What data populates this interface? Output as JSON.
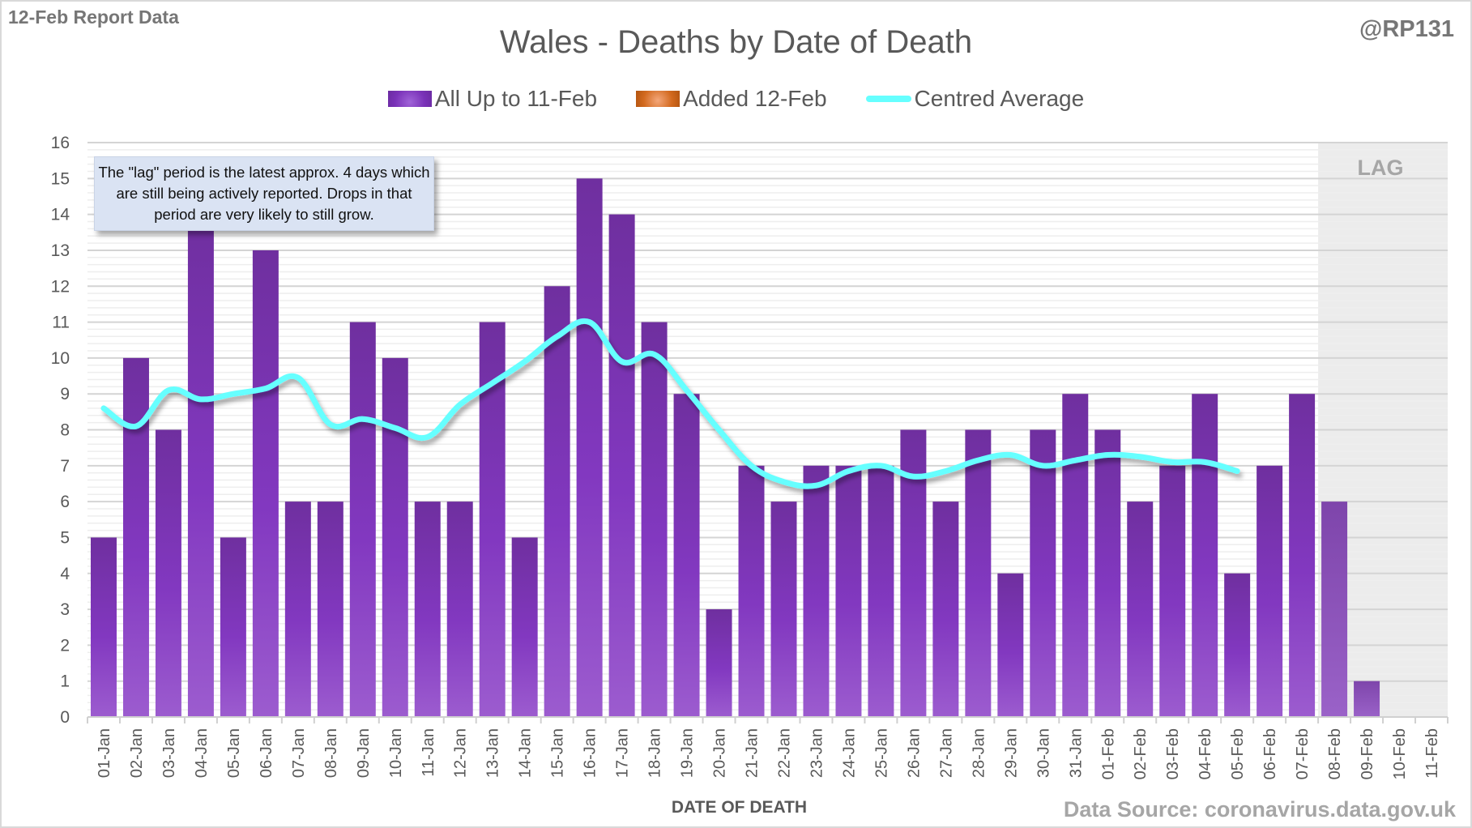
{
  "header": {
    "report_label": "12-Feb Report Data",
    "author": "@RP131"
  },
  "annotations": {
    "callout": "The \"lag\" period is the latest approx. 4 days which are still being actively reported.  Drops in that period are very likely to still grow.",
    "lag_label": "LAG",
    "source": "Data Source: coronavirus.data.gov.uk"
  },
  "colors": {
    "bar": "#7b33b8",
    "bar_lag": "#8a4fb8",
    "added": "#d2691e",
    "average": "#66ffff",
    "lag_shade": "#ececec"
  },
  "chart_data": {
    "type": "bar",
    "title": "Wales - Deaths by Date of Death",
    "xlabel": "DATE OF DEATH",
    "ylabel": "",
    "ylim": [
      0,
      16
    ],
    "yticks": [
      "0",
      "1",
      "2",
      "3",
      "4",
      "5",
      "6",
      "7",
      "8",
      "9",
      "10",
      "11",
      "12",
      "13",
      "14",
      "15",
      "16"
    ],
    "grid": true,
    "legend_position": "top-center",
    "lag_period": [
      "08-Feb",
      "11-Feb"
    ],
    "categories": [
      "01-Jan",
      "02-Jan",
      "03-Jan",
      "04-Jan",
      "05-Jan",
      "06-Jan",
      "07-Jan",
      "08-Jan",
      "09-Jan",
      "10-Jan",
      "11-Jan",
      "12-Jan",
      "13-Jan",
      "14-Jan",
      "15-Jan",
      "16-Jan",
      "17-Jan",
      "18-Jan",
      "19-Jan",
      "20-Jan",
      "21-Jan",
      "22-Jan",
      "23-Jan",
      "24-Jan",
      "25-Jan",
      "26-Jan",
      "27-Jan",
      "28-Jan",
      "29-Jan",
      "30-Jan",
      "31-Jan",
      "01-Feb",
      "02-Feb",
      "03-Feb",
      "04-Feb",
      "05-Feb",
      "06-Feb",
      "07-Feb",
      "08-Feb",
      "09-Feb",
      "10-Feb",
      "11-Feb"
    ],
    "series": [
      {
        "name": "All Up to 11-Feb",
        "type": "bar",
        "values": [
          5,
          10,
          8,
          14,
          5,
          13,
          6,
          6,
          11,
          10,
          6,
          6,
          11,
          5,
          12,
          15,
          14,
          11,
          9,
          3,
          7,
          6,
          7,
          7,
          7,
          8,
          6,
          8,
          4,
          8,
          9,
          8,
          6,
          7,
          9,
          4,
          7,
          9,
          6,
          1,
          0,
          0
        ]
      },
      {
        "name": "Added 12-Feb",
        "type": "bar",
        "values": [
          0,
          0,
          0,
          0,
          0,
          0,
          0,
          0,
          0,
          0,
          0,
          0,
          0,
          0,
          0,
          0,
          0,
          0,
          0,
          0,
          0,
          0,
          0,
          0,
          0,
          0,
          0,
          0,
          0,
          0,
          0,
          0,
          0,
          0,
          0,
          0,
          0,
          0,
          0,
          0,
          0,
          0
        ]
      },
      {
        "name": "Centred Average",
        "type": "line",
        "values": [
          8.6,
          8.1,
          9.1,
          8.85,
          9.0,
          9.15,
          9.45,
          8.15,
          8.3,
          8.05,
          7.8,
          8.7,
          9.3,
          9.9,
          10.6,
          11.0,
          9.9,
          10.1,
          9.1,
          8.0,
          7.0,
          6.55,
          6.45,
          6.85,
          7.0,
          6.7,
          6.85,
          7.15,
          7.3,
          7.0,
          7.15,
          7.3,
          7.25,
          7.1,
          7.1,
          6.85,
          null,
          null,
          null,
          null,
          null,
          null
        ]
      }
    ]
  }
}
